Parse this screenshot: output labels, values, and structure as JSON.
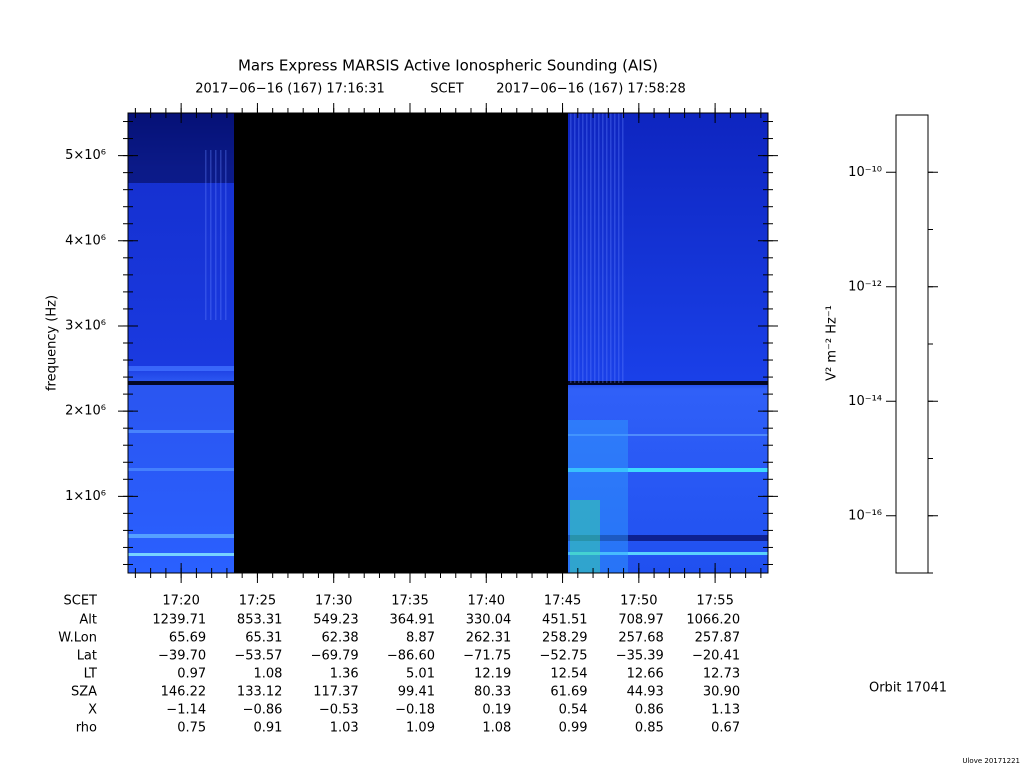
{
  "chart_data": {
    "type": "spectrogram",
    "title": "Mars Express MARSIS Active Ionospheric Sounding (AIS)",
    "start_time": "2017−06−16 (167) 17:16:31",
    "time_label": "SCET",
    "end_time": "2017−06−16 (167) 17:58:28",
    "y_label": "frequency (Hz)",
    "x_label": "SCET",
    "xlim": [
      1036.5167,
      1078.4667
    ],
    "xticks": [
      {
        "value": 1040,
        "label": "17:20"
      },
      {
        "value": 1045,
        "label": "17:25"
      },
      {
        "value": 1050,
        "label": "17:30"
      },
      {
        "value": 1055,
        "label": "17:35"
      },
      {
        "value": 1060,
        "label": "17:40"
      },
      {
        "value": 1065,
        "label": "17:45"
      },
      {
        "value": 1070,
        "label": "17:50"
      },
      {
        "value": 1075,
        "label": "17:55"
      }
    ],
    "ylim": [
      100000,
      5500000
    ],
    "yticks": [
      {
        "value": 1000000,
        "label": "1×10⁶"
      },
      {
        "value": 2000000,
        "label": "2×10⁶"
      },
      {
        "value": 3000000,
        "label": "3×10⁶"
      },
      {
        "value": 4000000,
        "label": "4×10⁶"
      },
      {
        "value": 5000000,
        "label": "5×10⁶"
      }
    ],
    "colorbar": {
      "label": "V² m⁻² Hz⁻¹",
      "log": true,
      "lim": [
        1e-17,
        1e-09
      ],
      "ticks": [
        {
          "value": 1e-16,
          "label": "10⁻¹⁶"
        },
        {
          "value": 1e-14,
          "label": "10⁻¹⁴"
        },
        {
          "value": 1e-12,
          "label": "10⁻¹²"
        },
        {
          "value": 1e-10,
          "label": "10⁻¹⁰"
        }
      ]
    }
  },
  "ephemeris": {
    "row_labels": [
      "Alt",
      "W.Lon",
      "Lat",
      "LT",
      "SZA",
      "X",
      "rho"
    ],
    "rows": [
      [
        "1239.71",
        "853.31",
        "549.23",
        "364.91",
        "330.04",
        "451.51",
        "708.97",
        "1066.20"
      ],
      [
        "65.69",
        "65.31",
        "62.38",
        "8.87",
        "262.31",
        "258.29",
        "257.68",
        "257.87"
      ],
      [
        "−39.70",
        "−53.57",
        "−69.79",
        "−86.60",
        "−71.75",
        "−52.75",
        "−35.39",
        "−20.41"
      ],
      [
        "0.97",
        "1.08",
        "1.36",
        "5.01",
        "12.19",
        "12.54",
        "12.66",
        "12.73"
      ],
      [
        "146.22",
        "133.12",
        "117.37",
        "99.41",
        "80.33",
        "61.69",
        "44.93",
        "30.90"
      ],
      [
        "−1.14",
        "−0.86",
        "−0.53",
        "−0.18",
        "0.19",
        "0.54",
        "0.86",
        "1.13"
      ],
      [
        "0.75",
        "0.91",
        "1.03",
        "1.09",
        "1.08",
        "0.99",
        "0.85",
        "0.67"
      ]
    ]
  },
  "orbit": "Orbit 17041",
  "footer": "Ulove 20171221"
}
